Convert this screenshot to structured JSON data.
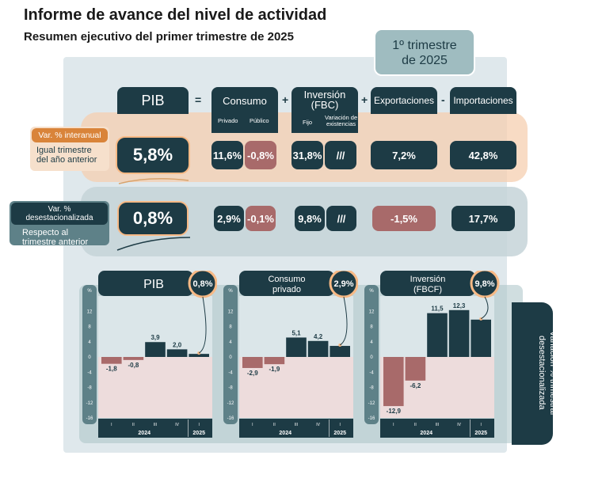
{
  "title": "Informe de avance del nivel de actividad",
  "subtitle": "Resumen ejecutivo del primer trimestre de 2025",
  "quarter": {
    "line1": "1º trimestre",
    "line2": "de 2025"
  },
  "equation": {
    "pib": "PIB",
    "eq": "=",
    "plus": "+",
    "minus": "-",
    "consumo": "Consumo",
    "privado": "Privado",
    "publico": "Público",
    "inversion": "Inversión\n(FBC)",
    "inv_l1": "Inversión",
    "inv_l2": "(FBC)",
    "fijo": "Fijo",
    "variacion_l1": "Variación de",
    "variacion_l2": "existencias",
    "exportaciones": "Exportaciones",
    "importaciones": "Importaciones"
  },
  "rows": [
    {
      "tag": "Var. % interanual",
      "desc_l1": "Igual trimestre",
      "desc_l2": "del año anterior",
      "pib": "5,8%",
      "privado": "11,6%",
      "publico": "-0,8%",
      "fijo": "31,8%",
      "existencias": "///",
      "export": "7,2%",
      "import": "42,8%"
    },
    {
      "tag": "Var. % desestacionalizada",
      "desc_l1": "Respecto al",
      "desc_l2": "trimestre anterior",
      "pib": "0,8%",
      "privado": "2,9%",
      "publico": "-0,1%",
      "fijo": "9,8%",
      "existencias": "///",
      "export": "-1,5%",
      "import": "17,7%"
    }
  ],
  "side_label_l1": "Variación % trimestral",
  "side_label_l2": "desestacionalizada",
  "colors": {
    "dark": "#1d3b45",
    "neg": "#a86a6a",
    "pos_bg": "#f6cfb0",
    "accent": "#f7b985",
    "neg_area": "#eddcdc"
  },
  "chart_data": [
    {
      "type": "bar",
      "title": "PIB",
      "badge": "0,8%",
      "ylabel": "%",
      "categories": [
        "I",
        "II",
        "III",
        "IV",
        "I"
      ],
      "years": [
        "2024",
        "2025"
      ],
      "values": [
        -1.8,
        -0.8,
        3.9,
        2.0,
        0.8
      ],
      "labels": [
        "-1,8",
        "-0,8",
        "3,9",
        "2,0",
        ""
      ],
      "yticks": [
        "12",
        "8",
        "4",
        "0",
        "-4",
        "-8",
        "-12",
        "-16"
      ],
      "ylim": [
        -16,
        16
      ]
    },
    {
      "type": "bar",
      "title": "Consumo privado",
      "title_l1": "Consumo",
      "title_l2": "privado",
      "badge": "2,9%",
      "ylabel": "%",
      "categories": [
        "I",
        "II",
        "III",
        "IV",
        "I"
      ],
      "years": [
        "2024",
        "2025"
      ],
      "values": [
        -2.9,
        -1.9,
        5.1,
        4.2,
        2.9
      ],
      "labels": [
        "-2,9",
        "-1,9",
        "5,1",
        "4,2",
        ""
      ],
      "yticks": [
        "12",
        "8",
        "4",
        "0",
        "-4",
        "-8",
        "-12",
        "-16"
      ],
      "ylim": [
        -16,
        16
      ]
    },
    {
      "type": "bar",
      "title": "Inversión (FBCF)",
      "title_l1": "Inversión",
      "title_l2": "(FBCF)",
      "badge": "9,8%",
      "ylabel": "%",
      "categories": [
        "I",
        "II",
        "III",
        "IV",
        "I"
      ],
      "years": [
        "2024",
        "2025"
      ],
      "values": [
        -12.9,
        -6.2,
        11.5,
        12.3,
        9.8
      ],
      "labels": [
        "-12,9",
        "-6,2",
        "11,5",
        "12,3",
        ""
      ],
      "yticks": [
        "12",
        "8",
        "4",
        "0",
        "-4",
        "-8",
        "-12",
        "-16"
      ],
      "ylim": [
        -16,
        16
      ]
    }
  ]
}
